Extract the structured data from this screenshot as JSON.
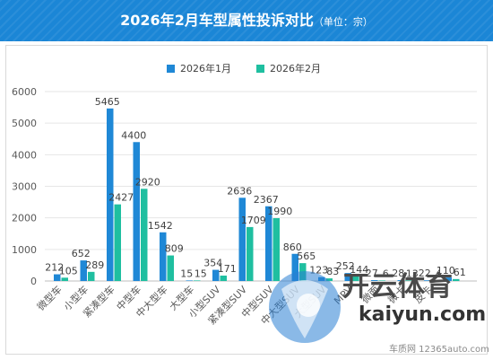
{
  "header": {
    "title": "2026年2月车型属性投诉对比",
    "unit": "（单位：宗）",
    "bg_color": "#1b86d6"
  },
  "chart_data": {
    "type": "bar",
    "title": "2026年2月车型属性投诉对比",
    "ylim": [
      0,
      6000
    ],
    "yticks": [
      0,
      1000,
      2000,
      3000,
      4000,
      5000,
      6000
    ],
    "grid": true,
    "legend_position": "top",
    "categories": [
      "微型车",
      "小型车",
      "紧凑型车",
      "中型车",
      "中大型车",
      "大型车",
      "小型SUV",
      "紧凑型SUV",
      "中型SUV",
      "中大型SUV",
      "大型SUV",
      "MPV",
      "微面",
      "微卡",
      "皮卡"
    ],
    "series": [
      {
        "name": "2026年1月",
        "color": "#1f88d6",
        "values": [
          212,
          652,
          5465,
          4400,
          1542,
          15,
          354,
          2636,
          2367,
          860,
          123,
          252,
          27,
          28,
          22
        ]
      },
      {
        "name": "2026年2月",
        "color": "#1fbfa0",
        "values": [
          105,
          289,
          2427,
          2920,
          809,
          15,
          171,
          1709,
          1990,
          565,
          83,
          144,
          6,
          13,
          4
        ]
      }
    ]
  },
  "extra_bars": {
    "series_1_value": 110,
    "series_2_value": 61
  },
  "watermark": {
    "brand_cn": "开云体育",
    "brand_en": "kaiyun.com",
    "site": "车质网 12365auto.com"
  }
}
